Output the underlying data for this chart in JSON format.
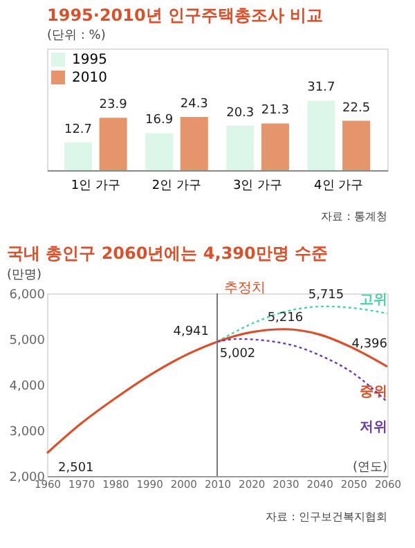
{
  "chart_data": [
    {
      "type": "bar",
      "title": "1995·2010년 인구주택총조사 비교",
      "subtitle": "(단위 : %)",
      "categories": [
        "1인 가구",
        "2인 가구",
        "3인 가구",
        "4인 가구"
      ],
      "series": [
        {
          "name": "1995",
          "color": "#dcf6ea",
          "values": [
            12.7,
            16.9,
            20.3,
            31.7
          ]
        },
        {
          "name": "2010",
          "color": "#e5946b",
          "values": [
            23.9,
            24.3,
            21.3,
            22.5
          ]
        }
      ],
      "data_labels": true,
      "legend": "top left",
      "tick_labels": "x",
      "annotations": [
        "자료 : 통계청"
      ]
    },
    {
      "type": "line",
      "title": "국내 총인구 2060년에는 4,390만명 수준",
      "xlabel": "(연도)",
      "ylabel": "(만명)",
      "series": [
        {
          "name": "고위",
          "color": "#4fd1a5",
          "line_style": "dotted",
          "x": [
            2010,
            2020,
            2030,
            2042,
            2050,
            2060
          ],
          "values": [
            4941,
            5330,
            5600,
            5715,
            5680,
            5560
          ]
        },
        {
          "name": "중위",
          "color": "#d9512c",
          "line_style": "solid",
          "x": [
            1960,
            1970,
            1980,
            1990,
            2000,
            2010,
            2020,
            2030,
            2040,
            2050,
            2060
          ],
          "values": [
            2501,
            3150,
            3700,
            4200,
            4620,
            4941,
            5150,
            5216,
            5100,
            4800,
            4396
          ]
        },
        {
          "name": "저위",
          "color": "#6a3ea1",
          "line_style": "dotted",
          "x": [
            2010,
            2016,
            2030,
            2040,
            2050,
            2060
          ],
          "values": [
            4941,
            5002,
            4900,
            4650,
            4250,
            3620
          ]
        }
      ],
      "xlim": [
        1960,
        2060
      ],
      "ylim": [
        2000,
        6000
      ],
      "xticks": [
        1960,
        1970,
        1980,
        1990,
        2000,
        2010,
        2020,
        2030,
        2040,
        2050,
        2060
      ],
      "yticks": [
        {
          "value": 2000,
          "label": "2,000"
        },
        {
          "value": 3000,
          "label": "3,000"
        },
        {
          "value": 4000,
          "label": "4,000"
        },
        {
          "value": 5000,
          "label": "5,000"
        },
        {
          "value": 6000,
          "label": "6,000"
        }
      ],
      "grid": false,
      "ref_lines": [
        {
          "axis": "x",
          "value": 2010,
          "label": "추정치",
          "color": "#777777"
        }
      ],
      "annotations": [
        {
          "text": "2,501",
          "x": 1960,
          "y": 2501
        },
        {
          "text": "4,941",
          "x": 2010,
          "y": 4941
        },
        {
          "text": "5,002",
          "x": 2016,
          "y": 5002
        },
        {
          "text": "5,216",
          "x": 2030,
          "y": 5216
        },
        {
          "text": "5,715",
          "x": 2042,
          "y": 5715
        },
        {
          "text": "4,396",
          "x": 2060,
          "y": 4396
        },
        "자료 : 인구보건복지협회"
      ]
    }
  ]
}
